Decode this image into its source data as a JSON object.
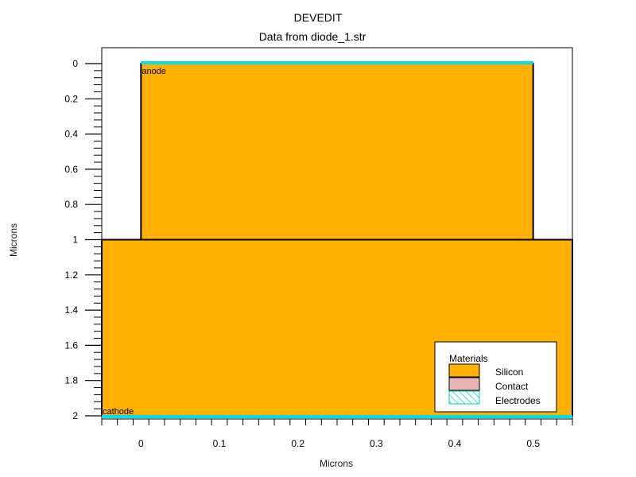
{
  "chart_data": {
    "type": "structure",
    "title": "DEVEDIT",
    "subtitle": "Data from diode_1.str",
    "xlabel": "Microns",
    "ylabel": "Microns",
    "xlim": [
      -0.05,
      0.55
    ],
    "ylim": [
      0,
      2
    ],
    "y_inverted": true,
    "x_ticks": [
      "0",
      "0.1",
      "0.2",
      "0.3",
      "0.4",
      "0.5"
    ],
    "y_ticks": [
      "0",
      "0.2",
      "0.4",
      "0.6",
      "0.8",
      "1",
      "1.2",
      "1.4",
      "1.6",
      "1.8",
      "2"
    ],
    "regions": [
      {
        "material": "Silicon",
        "x": [
          0,
          0.5
        ],
        "y": [
          0,
          1
        ]
      },
      {
        "material": "Silicon",
        "x": [
          -0.05,
          0.55
        ],
        "y": [
          1,
          2
        ]
      }
    ],
    "electrodes": [
      {
        "name": "anode",
        "x": [
          0,
          0.5
        ],
        "y": 0
      },
      {
        "name": "cathode",
        "x": [
          -0.05,
          0.55
        ],
        "y": 2
      }
    ],
    "legend": {
      "title": "Materials",
      "placement": "bottom-right",
      "items": [
        {
          "label": "Silicon",
          "color": "#ffb000",
          "pattern": "solid"
        },
        {
          "label": "Contact",
          "color": "#e8b4b4",
          "pattern": "solid"
        },
        {
          "label": "Electrodes",
          "color": "#00e0e0",
          "pattern": "hatch"
        }
      ]
    },
    "colors": {
      "silicon": "#ffb000",
      "electrode": "#00e0e0",
      "contact": "#e8b4b4"
    }
  }
}
